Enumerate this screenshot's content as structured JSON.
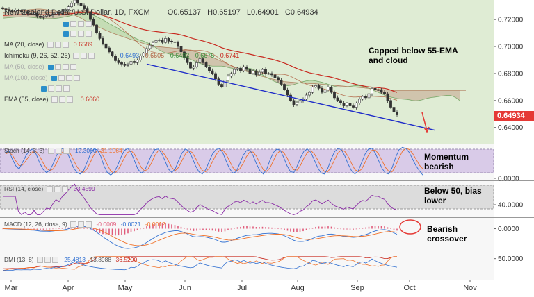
{
  "header": {
    "symbol": "New Zealand Dollar/U.S. Dollar, 1D, FXCM",
    "o_label": "O",
    "o": "0.65137",
    "h_label": "H",
    "h": "0.65197",
    "l_label": "L",
    "l": "0.64901",
    "c_label": "C",
    "c": "0.64934"
  },
  "colors": {
    "price_bg": "#dfecd4",
    "panel_bg": "#f6f6f6",
    "cloud_bear": "#c9b49c",
    "cloud_bull": "#b9d7a8",
    "ema": "#c8281e",
    "ma": "#b06040",
    "trendline": "#1e2bc9",
    "stoch_k": "#2f6fd1",
    "stoch_d": "#f07028",
    "rsi": "#8a2aa6",
    "macd_line": "#2f6fd1",
    "macd_signal": "#f07028",
    "macd_hist": "#e05a7a",
    "last_price_tag": "#e53935"
  },
  "indicators": [
    {
      "label": "MA (20, close)",
      "value": "0.6589",
      "value_color": "#c8281e"
    },
    {
      "label": "Ichimoku (9, 26, 52, 26)",
      "values": [
        "0.6493",
        "0.6605",
        "0.6493",
        "0.6675",
        "0.6741"
      ]
    },
    {
      "label": "MA (50, close)",
      "value": ""
    },
    {
      "label": "MA (100, close)",
      "value": ""
    },
    {
      "label": "EMA (55, close)",
      "value": "0.6660",
      "value_color": "#c8281e"
    }
  ],
  "panels": {
    "stoch": {
      "label": "Stoch (14, 3, 3)",
      "k": "12.3060",
      "d": "31.1064"
    },
    "rsi": {
      "label": "RSI (14, close)",
      "value": "33.4599"
    },
    "macd": {
      "label": "MACD (12, 26, close, 9)",
      "hist": "-0.0009",
      "macd": "-0.0021",
      "signal": "-0.0012"
    },
    "dmi": {
      "label": "DMI (13, 8)",
      "plus": "25.4813",
      "minus": "13.8988",
      "adx": "36.5290"
    }
  },
  "annotations": {
    "price": "Capped below 55-EMA\nand cloud",
    "stoch": "Momentum\nbearish",
    "rsi": "Below 50, bias\nlower",
    "macd": "Bearish\ncrossover"
  },
  "last_price": "0.64934",
  "chart_data": {
    "type": "candlestick",
    "x_labels": [
      "Mar",
      "Apr",
      "May",
      "Jun",
      "Jul",
      "Aug",
      "Sep",
      "Oct",
      "Nov"
    ],
    "price_axis": {
      "ticks": [
        "0.72000",
        "0.70000",
        "0.68000",
        "0.66000",
        "0.64000"
      ],
      "range": [
        0.628,
        0.7345
      ]
    },
    "stoch_axis": {
      "ticks": [
        "0.0000"
      ],
      "range": [
        0,
        100
      ]
    },
    "rsi_axis": {
      "ticks": [
        "40.0000"
      ],
      "range": [
        20,
        80
      ]
    },
    "macd_axis": {
      "ticks": [
        "0.0000"
      ],
      "range": [
        -0.012,
        0.005
      ]
    },
    "dmi_axis": {
      "ticks": [
        "50.0000"
      ],
      "range": [
        0,
        60
      ]
    },
    "price_close": [
      0.728,
      0.7275,
      0.7265,
      0.7262,
      0.727,
      0.7265,
      0.7255,
      0.7258,
      0.7245,
      0.724,
      0.7248,
      0.7225,
      0.7215,
      0.7225,
      0.7232,
      0.7228,
      0.724,
      0.7252,
      0.7245,
      0.7262,
      0.7275,
      0.7295,
      0.732,
      0.7345,
      0.732,
      0.7305,
      0.728,
      0.725,
      0.72,
      0.716,
      0.71,
      0.706,
      0.702,
      0.699,
      0.696,
      0.693,
      0.6895,
      0.688,
      0.687,
      0.686,
      0.687,
      0.689,
      0.688,
      0.69,
      0.693,
      0.695,
      0.6985,
      0.701,
      0.703,
      0.7045,
      0.705,
      0.703,
      0.706,
      0.704,
      0.7035,
      0.703,
      0.7,
      0.696,
      0.692,
      0.688,
      0.684,
      0.685,
      0.688,
      0.691,
      0.688,
      0.685,
      0.682,
      0.68,
      0.676,
      0.672,
      0.67,
      0.675,
      0.678,
      0.68,
      0.683,
      0.684,
      0.682,
      0.685,
      0.683,
      0.68,
      0.682,
      0.679,
      0.681,
      0.683,
      0.68,
      0.68,
      0.679,
      0.677,
      0.675,
      0.672,
      0.668,
      0.664,
      0.66,
      0.657,
      0.658,
      0.66,
      0.661,
      0.664,
      0.666,
      0.67,
      0.671,
      0.669,
      0.666,
      0.668,
      0.67,
      0.666,
      0.662,
      0.66,
      0.658,
      0.656,
      0.658,
      0.656,
      0.655,
      0.658,
      0.661,
      0.663,
      0.662,
      0.665,
      0.669,
      0.668,
      0.668,
      0.666,
      0.665,
      0.66,
      0.655,
      0.6513,
      0.6493
    ],
    "ema55": [
      0.723,
      0.7232,
      0.7233,
      0.7234,
      0.7235,
      0.7236,
      0.7236,
      0.7237,
      0.7237,
      0.7237,
      0.7237,
      0.7237,
      0.7236,
      0.7236,
      0.7236,
      0.7236,
      0.7236,
      0.7237,
      0.7237,
      0.7238,
      0.7239,
      0.7241,
      0.7244,
      0.7247,
      0.7249,
      0.7251,
      0.7252,
      0.7252,
      0.725,
      0.7248,
      0.7243,
      0.7237,
      0.7231,
      0.7224,
      0.7216,
      0.7208,
      0.7199,
      0.719,
      0.7181,
      0.7172,
      0.7163,
      0.7155,
      0.7146,
      0.7139,
      0.7132,
      0.7126,
      0.7121,
      0.7117,
      0.7114,
      0.7111,
      0.7108,
      0.7105,
      0.7103,
      0.71,
      0.7097,
      0.7095,
      0.7091,
      0.7086,
      0.708,
      0.7073,
      0.7065,
      0.7058,
      0.7052,
      0.7047,
      0.7041,
      0.7034,
      0.7027,
      0.7019,
      0.7011,
      0.7001,
      0.6991,
      0.6984,
      0.6977,
      0.6971,
      0.6966,
      0.6962,
      0.6957,
      0.6953,
      0.6948,
      0.6943,
      0.6938,
      0.6932,
      0.6927,
      0.6923,
      0.6917,
      0.6911,
      0.6906,
      0.69,
      0.6893,
      0.6885,
      0.6877,
      0.6868,
      0.6858,
      0.6847,
      0.6837,
      0.6828,
      0.6819,
      0.6812,
      0.6805,
      0.68,
      0.6796,
      0.6791,
      0.6785,
      0.678,
      0.6777,
      0.6772,
      0.6766,
      0.6759,
      0.6752,
      0.6745,
      0.6738,
      0.6731,
      0.6725,
      0.6719,
      0.6713,
      0.6709,
      0.6704,
      0.6701,
      0.6699,
      0.6697,
      0.6695,
      0.6692,
      0.669,
      0.6685,
      0.6677,
      0.6668,
      0.666
    ],
    "cloud_a": [
      0.721,
      0.7212,
      0.7214,
      0.7216,
      0.7218,
      0.7219,
      0.722,
      0.7219,
      0.7218,
      0.7216,
      0.7214,
      0.7212,
      0.721,
      0.7208,
      0.7206,
      0.7206,
      0.7207,
      0.7209,
      0.7212,
      0.7216,
      0.722,
      0.7225,
      0.723,
      0.7235,
      0.724,
      0.7245,
      0.7248,
      0.7245,
      0.724,
      0.7232,
      0.7222,
      0.721,
      0.7198,
      0.7185,
      0.717,
      0.7158,
      0.7146,
      0.7132,
      0.7118,
      0.7105,
      0.7092,
      0.7078,
      0.7066,
      0.7055,
      0.7046,
      0.704,
      0.703,
      0.702,
      0.7005,
      0.699,
      0.6975,
      0.6962,
      0.6952,
      0.6946,
      0.694,
      0.6935,
      0.693,
      0.6925,
      0.692,
      0.6915,
      0.6905,
      0.6895,
      0.6885,
      0.6875,
      0.6868,
      0.6862,
      0.6858,
      0.6855,
      0.6855,
      0.6855,
      0.6855,
      0.6852,
      0.6845,
      0.684,
      0.6835,
      0.6832,
      0.6832,
      0.6835,
      0.6838,
      0.6838,
      0.6832,
      0.682,
      0.6805,
      0.679,
      0.6775,
      0.6762,
      0.675,
      0.674,
      0.673,
      0.672,
      0.6712,
      0.671,
      0.6712,
      0.6718,
      0.6725,
      0.6732,
      0.674,
      0.6745,
      0.6748,
      0.6748,
      0.6745,
      0.674,
      0.6735,
      0.6728,
      0.672,
      0.6712,
      0.6705,
      0.67,
      0.6698,
      0.67,
      0.6702,
      0.6705,
      0.6708,
      0.671,
      0.671,
      0.6705,
      0.6698,
      0.669,
      0.668,
      0.667,
      0.666,
      0.665,
      0.664,
      0.663,
      0.6625,
      0.662,
      0.6615,
      0.6612,
      0.661,
      0.6608,
      0.6605,
      0.66,
      0.6598,
      0.66,
      0.6605,
      0.6612,
      0.6618,
      0.6622,
      0.6625,
      0.6628,
      0.6632,
      0.6635,
      0.6638,
      0.6638,
      0.663,
      0.6618,
      0.66
    ],
    "cloud_b": [
      0.725,
      0.7253,
      0.7256,
      0.7259,
      0.7262,
      0.7265,
      0.7268,
      0.727,
      0.7272,
      0.7274,
      0.7276,
      0.7278,
      0.7278,
      0.7276,
      0.7273,
      0.727,
      0.7266,
      0.7262,
      0.7258,
      0.7254,
      0.725,
      0.7245,
      0.724,
      0.7232,
      0.7222,
      0.721,
      0.7196,
      0.7182,
      0.717,
      0.716,
      0.715,
      0.714,
      0.713,
      0.712,
      0.711,
      0.71,
      0.7092,
      0.7084,
      0.7076,
      0.7068,
      0.706,
      0.7052,
      0.7045,
      0.7038,
      0.703,
      0.7022,
      0.7015,
      0.701,
      0.7005,
      0.7,
      0.6998,
      0.6996,
      0.6994,
      0.6992,
      0.699,
      0.6988,
      0.6986,
      0.6984,
      0.698,
      0.6975,
      0.697,
      0.6965,
      0.696,
      0.6955,
      0.6948,
      0.694,
      0.693,
      0.692,
      0.691,
      0.69,
      0.689,
      0.688,
      0.687,
      0.686,
      0.685,
      0.684,
      0.683,
      0.6822,
      0.6815,
      0.6808,
      0.68,
      0.6792,
      0.6785,
      0.6778,
      0.6772,
      0.6766,
      0.676,
      0.6755,
      0.675,
      0.6745,
      0.674,
      0.6738,
      0.6736,
      0.6734,
      0.6732,
      0.673,
      0.6728,
      0.6727,
      0.6726,
      0.6725,
      0.6724,
      0.6722,
      0.672,
      0.6718,
      0.6716,
      0.6714,
      0.6712,
      0.671,
      0.6708,
      0.6706,
      0.6704,
      0.6702,
      0.67,
      0.6698,
      0.6696,
      0.6694,
      0.6692,
      0.669,
      0.6688,
      0.6686,
      0.6684,
      0.6682,
      0.668,
      0.6678,
      0.6676,
      0.6675,
      0.6675,
      0.6675,
      0.6675,
      0.6675,
      0.6675,
      0.6675,
      0.6675,
      0.6675,
      0.6675,
      0.6675,
      0.6675,
      0.6675,
      0.6675,
      0.6675,
      0.6675,
      0.6675,
      0.6675,
      0.6675,
      0.6675,
      0.6675,
      0.6675,
      0.6675,
      0.6675
    ],
    "trendline": {
      "from": {
        "bar": 46,
        "price": 0.687
      },
      "to": {
        "bar": 138,
        "price": 0.638
      }
    },
    "stoch_k": [
      80,
      85,
      60,
      40,
      30,
      50,
      70,
      85,
      90,
      75,
      50,
      30,
      20,
      25,
      45,
      70,
      88,
      92,
      85,
      60,
      35,
      20,
      15,
      25,
      50,
      75,
      90,
      88,
      70,
      40,
      20,
      12,
      20,
      40,
      65,
      85,
      92,
      80,
      55,
      30,
      18,
      25,
      48,
      72,
      88,
      90,
      78,
      55,
      30,
      20,
      30,
      55,
      78,
      90,
      85,
      65,
      40,
      22,
      15,
      28,
      52,
      75,
      88,
      92,
      80,
      55,
      32,
      18,
      22,
      45,
      70,
      85,
      88,
      70,
      45,
      25,
      15,
      30,
      58,
      80,
      90,
      86,
      65,
      40,
      22,
      20,
      40,
      65,
      84,
      90,
      80,
      58,
      35,
      18,
      15,
      32,
      60,
      82,
      92,
      88,
      70,
      45,
      25,
      15,
      25,
      50,
      75,
      90,
      92,
      78,
      55,
      32,
      18,
      15,
      35,
      65,
      88,
      95,
      92,
      80,
      60,
      40,
      25,
      12
    ],
    "stoch_d": [
      75,
      80,
      72,
      55,
      40,
      42,
      55,
      70,
      82,
      82,
      70,
      50,
      33,
      25,
      30,
      47,
      68,
      84,
      88,
      78,
      58,
      38,
      24,
      20,
      30,
      50,
      72,
      85,
      82,
      65,
      43,
      24,
      17,
      25,
      42,
      63,
      80,
      85,
      75,
      55,
      35,
      24,
      30,
      48,
      70,
      85,
      85,
      72,
      55,
      35,
      25,
      35,
      55,
      75,
      85,
      80,
      63,
      42,
      26,
      22,
      32,
      52,
      72,
      85,
      87,
      75,
      55,
      35,
      24,
      30,
      46,
      67,
      81,
      81,
      68,
      47,
      28,
      23,
      34,
      56,
      76,
      85,
      80,
      64,
      42,
      28,
      27,
      42,
      63,
      80,
      85,
      76,
      58,
      37,
      23,
      22,
      36,
      58,
      78,
      87,
      83,
      68,
      47,
      28,
      22,
      30,
      50,
      72,
      86,
      87,
      75,
      55,
      35,
      23,
      22,
      40,
      63,
      83,
      92,
      89,
      77,
      60,
      42,
      31
    ]
  }
}
